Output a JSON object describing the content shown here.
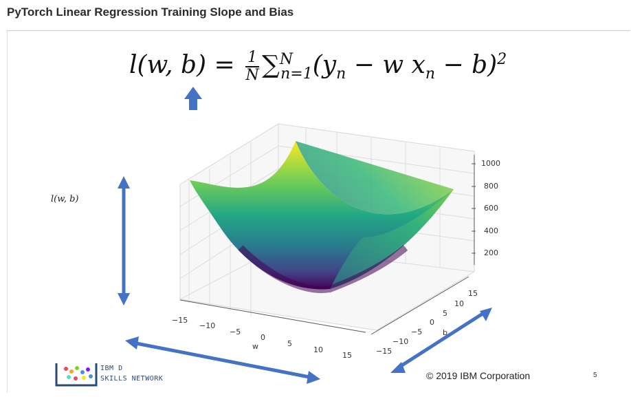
{
  "page": {
    "title": "PyTorch Linear Regression Training Slope and Bias"
  },
  "slide": {
    "formula": {
      "lhs": "l(w, b) =",
      "frac_num": "1",
      "frac_den": "N",
      "sum": "∑",
      "sum_sub": "n=1",
      "sum_sup": "N",
      "body": "(y",
      "y_sub": "n",
      "mid": " − w x",
      "x_sub": "n",
      "tail": " − b)",
      "power": "2"
    },
    "side_label": "l(w, b)",
    "copyright": "© 2019 IBM Corporation",
    "slide_number": "5",
    "logo": {
      "line1": "IBM D",
      "line2": "SKILLS NETWORK"
    }
  },
  "plot": {
    "z_ticks": [
      "1000",
      "800",
      "600",
      "400",
      "200"
    ],
    "w_ticks": [
      "−15",
      "−10",
      "−5",
      "0",
      "5",
      "10",
      "15"
    ],
    "b_ticks": [
      "15",
      "10",
      "5",
      "0",
      "−5",
      "−10",
      "−15"
    ],
    "w_label": "w",
    "b_label": "b"
  },
  "colors": {
    "arrow": "#4472c4",
    "surface_low": "#440154",
    "surface_mid": "#21918c",
    "surface_high": "#fde725"
  }
}
